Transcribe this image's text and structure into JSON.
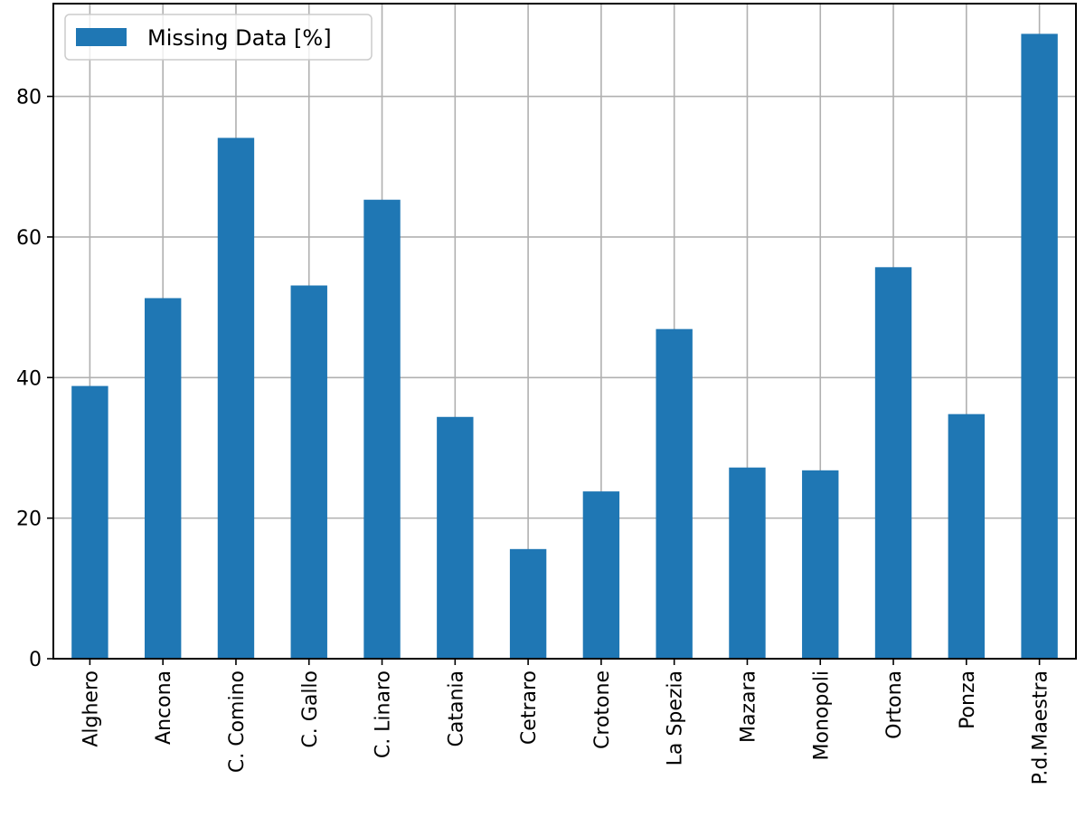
{
  "chart_data": {
    "type": "bar",
    "title": "",
    "xlabel": "",
    "ylabel": "",
    "categories": [
      "Alghero",
      "Ancona",
      "C. Comino",
      "C. Gallo",
      "C. Linaro",
      "Catania",
      "Cetraro",
      "Crotone",
      "La Spezia",
      "Mazara",
      "Monopoli",
      "Ortona",
      "Ponza",
      "P.d.Maestra"
    ],
    "series": [
      {
        "name": "Missing Data [%]",
        "color": "#1f77b4",
        "values": [
          38.8,
          51.3,
          74.1,
          53.1,
          65.3,
          34.4,
          15.6,
          23.8,
          46.9,
          27.2,
          26.8,
          55.7,
          34.8,
          88.9
        ]
      }
    ],
    "ylim": [
      0,
      93.2
    ],
    "yticks": [
      0,
      20,
      40,
      60,
      80
    ],
    "grid": true,
    "legend": "top-left",
    "x_tick_rotation": 90
  }
}
